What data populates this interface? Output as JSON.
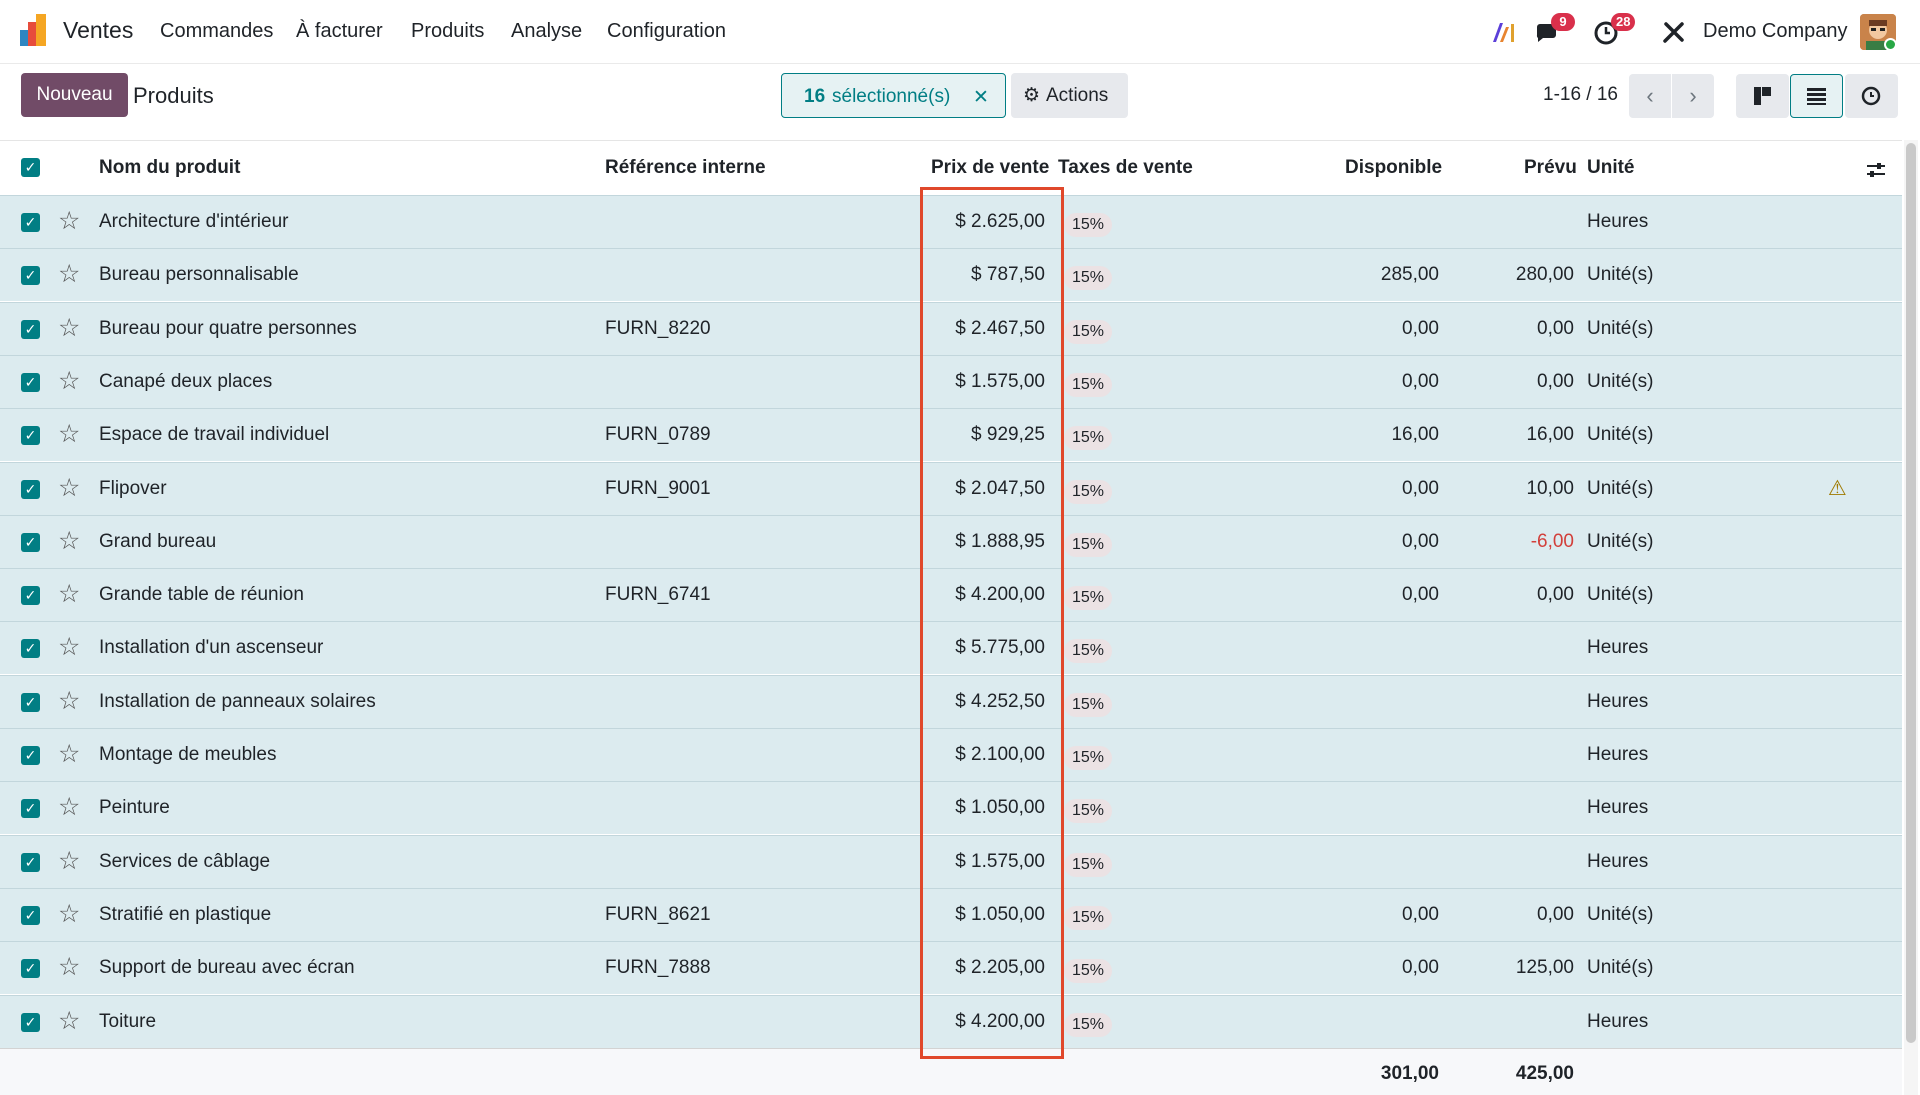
{
  "navbar": {
    "app_name": "Ventes",
    "menu": [
      "Commandes",
      "À facturer",
      "Produits",
      "Analyse",
      "Configuration"
    ],
    "messages_count": "9",
    "activities_count": "28",
    "company": "Demo Company"
  },
  "control": {
    "new_label": "Nouveau",
    "breadcrumb": "Produits",
    "selected_count": "16",
    "selected_label": "sélectionné(s)",
    "actions_label": "Actions",
    "pager": "1-16 / 16"
  },
  "table": {
    "headers": {
      "name": "Nom du produit",
      "ref": "Référence interne",
      "price": "Prix de vente",
      "taxes": "Taxes de vente",
      "available": "Disponible",
      "forecast": "Prévu",
      "unit": "Unité"
    },
    "rows": [
      {
        "name": "Architecture d'intérieur",
        "ref": "",
        "price": "$ 2.625,00",
        "tax": "15%",
        "available": "",
        "forecast": "",
        "unit": "Heures",
        "warn": false,
        "neg": false
      },
      {
        "name": "Bureau personnalisable",
        "ref": "",
        "price": "$ 787,50",
        "tax": "15%",
        "available": "285,00",
        "forecast": "280,00",
        "unit": "Unité(s)",
        "warn": false,
        "neg": false
      },
      {
        "name": "Bureau pour quatre personnes",
        "ref": "FURN_8220",
        "price": "$ 2.467,50",
        "tax": "15%",
        "available": "0,00",
        "forecast": "0,00",
        "unit": "Unité(s)",
        "warn": false,
        "neg": false
      },
      {
        "name": "Canapé deux places",
        "ref": "",
        "price": "$ 1.575,00",
        "tax": "15%",
        "available": "0,00",
        "forecast": "0,00",
        "unit": "Unité(s)",
        "warn": false,
        "neg": false
      },
      {
        "name": "Espace de travail individuel",
        "ref": "FURN_0789",
        "price": "$ 929,25",
        "tax": "15%",
        "available": "16,00",
        "forecast": "16,00",
        "unit": "Unité(s)",
        "warn": false,
        "neg": false
      },
      {
        "name": "Flipover",
        "ref": "FURN_9001",
        "price": "$ 2.047,50",
        "tax": "15%",
        "available": "0,00",
        "forecast": "10,00",
        "unit": "Unité(s)",
        "warn": true,
        "neg": false
      },
      {
        "name": "Grand bureau",
        "ref": "",
        "price": "$ 1.888,95",
        "tax": "15%",
        "available": "0,00",
        "forecast": "-6,00",
        "unit": "Unité(s)",
        "warn": false,
        "neg": true
      },
      {
        "name": "Grande table de réunion",
        "ref": "FURN_6741",
        "price": "$ 4.200,00",
        "tax": "15%",
        "available": "0,00",
        "forecast": "0,00",
        "unit": "Unité(s)",
        "warn": false,
        "neg": false
      },
      {
        "name": "Installation d'un ascenseur",
        "ref": "",
        "price": "$ 5.775,00",
        "tax": "15%",
        "available": "",
        "forecast": "",
        "unit": "Heures",
        "warn": false,
        "neg": false
      },
      {
        "name": "Installation de panneaux solaires",
        "ref": "",
        "price": "$ 4.252,50",
        "tax": "15%",
        "available": "",
        "forecast": "",
        "unit": "Heures",
        "warn": false,
        "neg": false
      },
      {
        "name": "Montage de meubles",
        "ref": "",
        "price": "$ 2.100,00",
        "tax": "15%",
        "available": "",
        "forecast": "",
        "unit": "Heures",
        "warn": false,
        "neg": false
      },
      {
        "name": "Peinture",
        "ref": "",
        "price": "$ 1.050,00",
        "tax": "15%",
        "available": "",
        "forecast": "",
        "unit": "Heures",
        "warn": false,
        "neg": false
      },
      {
        "name": "Services de câblage",
        "ref": "",
        "price": "$ 1.575,00",
        "tax": "15%",
        "available": "",
        "forecast": "",
        "unit": "Heures",
        "warn": false,
        "neg": false
      },
      {
        "name": "Stratifié en plastique",
        "ref": "FURN_8621",
        "price": "$ 1.050,00",
        "tax": "15%",
        "available": "0,00",
        "forecast": "0,00",
        "unit": "Unité(s)",
        "warn": false,
        "neg": false
      },
      {
        "name": "Support de bureau avec écran",
        "ref": "FURN_7888",
        "price": "$ 2.205,00",
        "tax": "15%",
        "available": "0,00",
        "forecast": "125,00",
        "unit": "Unité(s)",
        "warn": false,
        "neg": false
      },
      {
        "name": "Toiture",
        "ref": "",
        "price": "$ 4.200,00",
        "tax": "15%",
        "available": "",
        "forecast": "",
        "unit": "Heures",
        "warn": false,
        "neg": false
      }
    ],
    "totals": {
      "available": "301,00",
      "forecast": "425,00"
    }
  },
  "colors": {
    "brand": "#714b67",
    "accent": "#017e84",
    "selected_row": "#dcebef",
    "highlight_box": "#e0482b",
    "negative": "#d23f3a"
  }
}
